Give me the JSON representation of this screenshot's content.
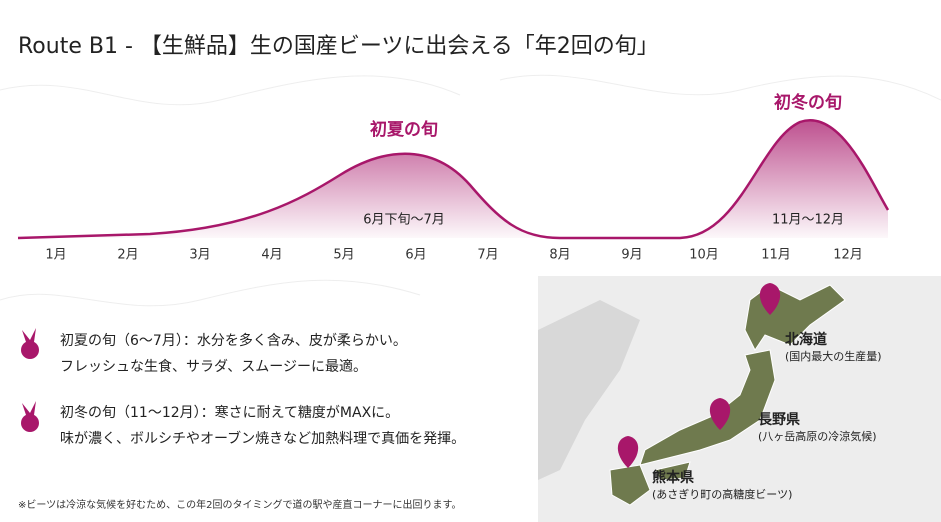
{
  "header": {
    "title": "Route B1 - 【生鮮品】生の国産ビーツに出会える「年2回の旬」"
  },
  "timeline": {
    "months": [
      "1月",
      "2月",
      "3月",
      "4月",
      "5月",
      "6月",
      "7月",
      "8月",
      "9月",
      "10月",
      "11月",
      "12月"
    ],
    "peaks": [
      {
        "label": "初夏の旬",
        "period": "6月下旬〜7月"
      },
      {
        "label": "初冬の旬",
        "period": "11月〜12月"
      }
    ]
  },
  "bullets": [
    {
      "lines": [
        "初夏の旬（6〜7月）：水分を多く含み、皮が柔らかい。",
        "フレッシュな生食、サラダ、スムージーに最適。"
      ]
    },
    {
      "lines": [
        "初冬の旬（11〜12月）：寒さに耐えて糖度がMAXに。",
        "味が濃く、ボルシチやオーブン焼きなど加熱料理で真価を発揮。"
      ]
    }
  ],
  "map": {
    "regions": [
      {
        "name": "北海道",
        "note": "(国内最大の生産量)"
      },
      {
        "name": "長野県",
        "note": "(八ヶ岳高原の冷涼気候)"
      },
      {
        "name": "熊本県",
        "note": "(あさぎり町の高糖度ビーツ)"
      }
    ]
  },
  "footnote": "※ビーツは冷涼な気候を好むため、この年2回のタイミングで道の駅や産直コーナーに出回ります。"
}
